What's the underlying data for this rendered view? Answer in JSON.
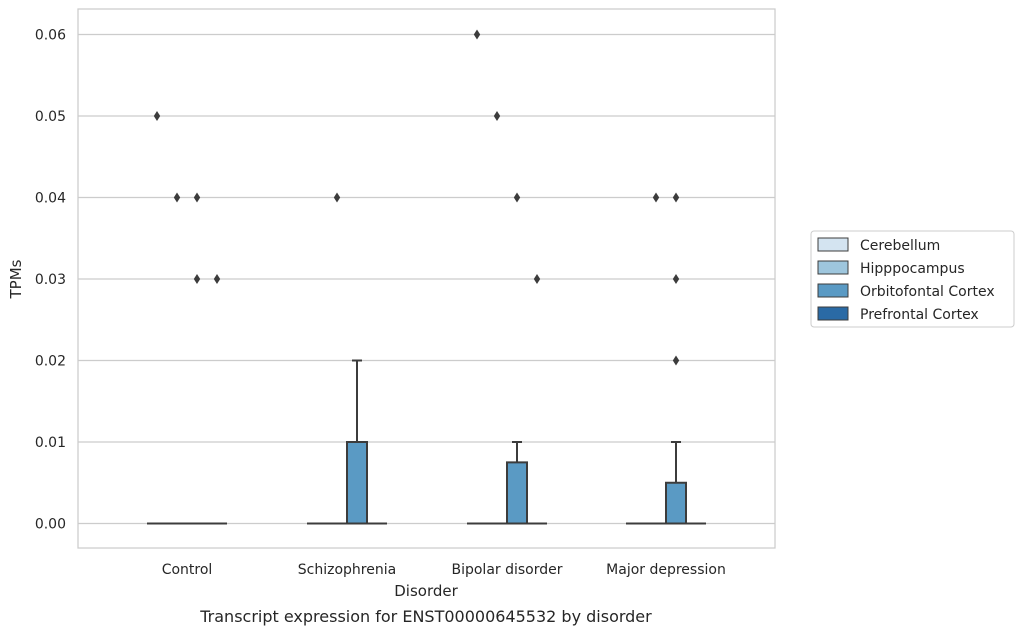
{
  "caption": "Transcript expression for ENST00000645532 by disorder",
  "chart_data": {
    "type": "box",
    "xlabel": "Disorder",
    "ylabel": "TPMs",
    "ylim": [
      -0.003,
      0.063
    ],
    "yticks": [
      "0.00",
      "0.01",
      "0.02",
      "0.03",
      "0.04",
      "0.05",
      "0.06"
    ],
    "ytick_values": [
      0,
      0.01,
      0.02,
      0.03,
      0.04,
      0.05,
      0.06
    ],
    "grid": "horizontal",
    "legend_position": "right",
    "categories": [
      "Control",
      "Schizophrenia",
      "Bipolar disorder",
      "Major depression"
    ],
    "series": [
      {
        "name": "Cerebellum",
        "color": "#d4e4f1",
        "boxes": [
          {
            "q1": 0,
            "median": 0,
            "q3": 0,
            "whisker_low": 0,
            "whisker_high": 0,
            "outliers": [
              0.05
            ]
          },
          {
            "q1": 0,
            "median": 0,
            "q3": 0,
            "whisker_low": 0,
            "whisker_high": 0,
            "outliers": []
          },
          {
            "q1": 0,
            "median": 0,
            "q3": 0,
            "whisker_low": 0,
            "whisker_high": 0,
            "outliers": [
              0.06
            ]
          },
          {
            "q1": 0,
            "median": 0,
            "q3": 0,
            "whisker_low": 0,
            "whisker_high": 0,
            "outliers": []
          }
        ]
      },
      {
        "name": "Hipppocampus",
        "color": "#9ec6dd",
        "boxes": [
          {
            "q1": 0,
            "median": 0,
            "q3": 0,
            "whisker_low": 0,
            "whisker_high": 0,
            "outliers": [
              0.04
            ]
          },
          {
            "q1": 0,
            "median": 0,
            "q3": 0,
            "whisker_low": 0,
            "whisker_high": 0,
            "outliers": [
              0.04
            ]
          },
          {
            "q1": 0,
            "median": 0,
            "q3": 0,
            "whisker_low": 0,
            "whisker_high": 0,
            "outliers": [
              0.05
            ]
          },
          {
            "q1": 0,
            "median": 0,
            "q3": 0,
            "whisker_low": 0,
            "whisker_high": 0,
            "outliers": [
              0.04
            ]
          }
        ]
      },
      {
        "name": "Orbitofontal Cortex",
        "color": "#5a9ac4",
        "boxes": [
          {
            "q1": 0,
            "median": 0,
            "q3": 0,
            "whisker_low": 0,
            "whisker_high": 0,
            "outliers": [
              0.04,
              0.03
            ]
          },
          {
            "q1": 0,
            "median": 0,
            "q3": 0.01,
            "whisker_low": 0,
            "whisker_high": 0.02,
            "outliers": []
          },
          {
            "q1": 0,
            "median": 0,
            "q3": 0.0075,
            "whisker_low": 0,
            "whisker_high": 0.01,
            "outliers": [
              0.04
            ]
          },
          {
            "q1": 0,
            "median": 0,
            "q3": 0.005,
            "whisker_low": 0,
            "whisker_high": 0.01,
            "outliers": [
              0.04,
              0.03,
              0.02
            ]
          }
        ]
      },
      {
        "name": "Prefrontal Cortex",
        "color": "#2a6aa5",
        "boxes": [
          {
            "q1": 0,
            "median": 0,
            "q3": 0,
            "whisker_low": 0,
            "whisker_high": 0,
            "outliers": [
              0.03
            ]
          },
          {
            "q1": 0,
            "median": 0,
            "q3": 0,
            "whisker_low": 0,
            "whisker_high": 0,
            "outliers": []
          },
          {
            "q1": 0,
            "median": 0,
            "q3": 0,
            "whisker_low": 0,
            "whisker_high": 0,
            "outliers": [
              0.03
            ]
          },
          {
            "q1": 0,
            "median": 0,
            "q3": 0,
            "whisker_low": 0,
            "whisker_high": 0,
            "outliers": []
          }
        ]
      }
    ]
  }
}
